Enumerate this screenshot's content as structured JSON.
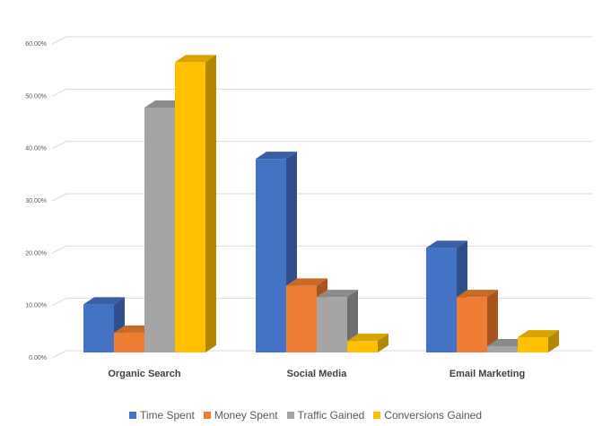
{
  "chart_data": {
    "type": "bar",
    "style": "3d-clustered-column",
    "categories": [
      "Organic Search",
      "Social Media",
      "Email Marketing"
    ],
    "series": [
      {
        "name": "Time Spent",
        "color": "#4472C4",
        "side": "#2E4E8C",
        "top": "#3A5FA6",
        "values": [
          9.2,
          37.0,
          20.0
        ]
      },
      {
        "name": "Money Spent",
        "color": "#ED7D31",
        "side": "#A8541E",
        "top": "#C96A28",
        "values": [
          3.8,
          12.8,
          10.6
        ]
      },
      {
        "name": "Traffic Gained",
        "color": "#A5A5A5",
        "side": "#6E6E6E",
        "top": "#8A8A8A",
        "values": [
          46.8,
          10.6,
          1.2
        ]
      },
      {
        "name": "Conversions Gained",
        "color": "#FFC000",
        "side": "#B38700",
        "top": "#D9A300",
        "values": [
          55.5,
          2.2,
          2.9
        ]
      }
    ],
    "ylim": [
      0,
      60
    ],
    "yticks": [
      "0.00%",
      "10.00%",
      "20.00%",
      "30.00%",
      "40.00%",
      "50.00%",
      "60.00%"
    ],
    "grid": true,
    "legend": "bottom",
    "title": "",
    "xlabel": "",
    "ylabel": ""
  }
}
